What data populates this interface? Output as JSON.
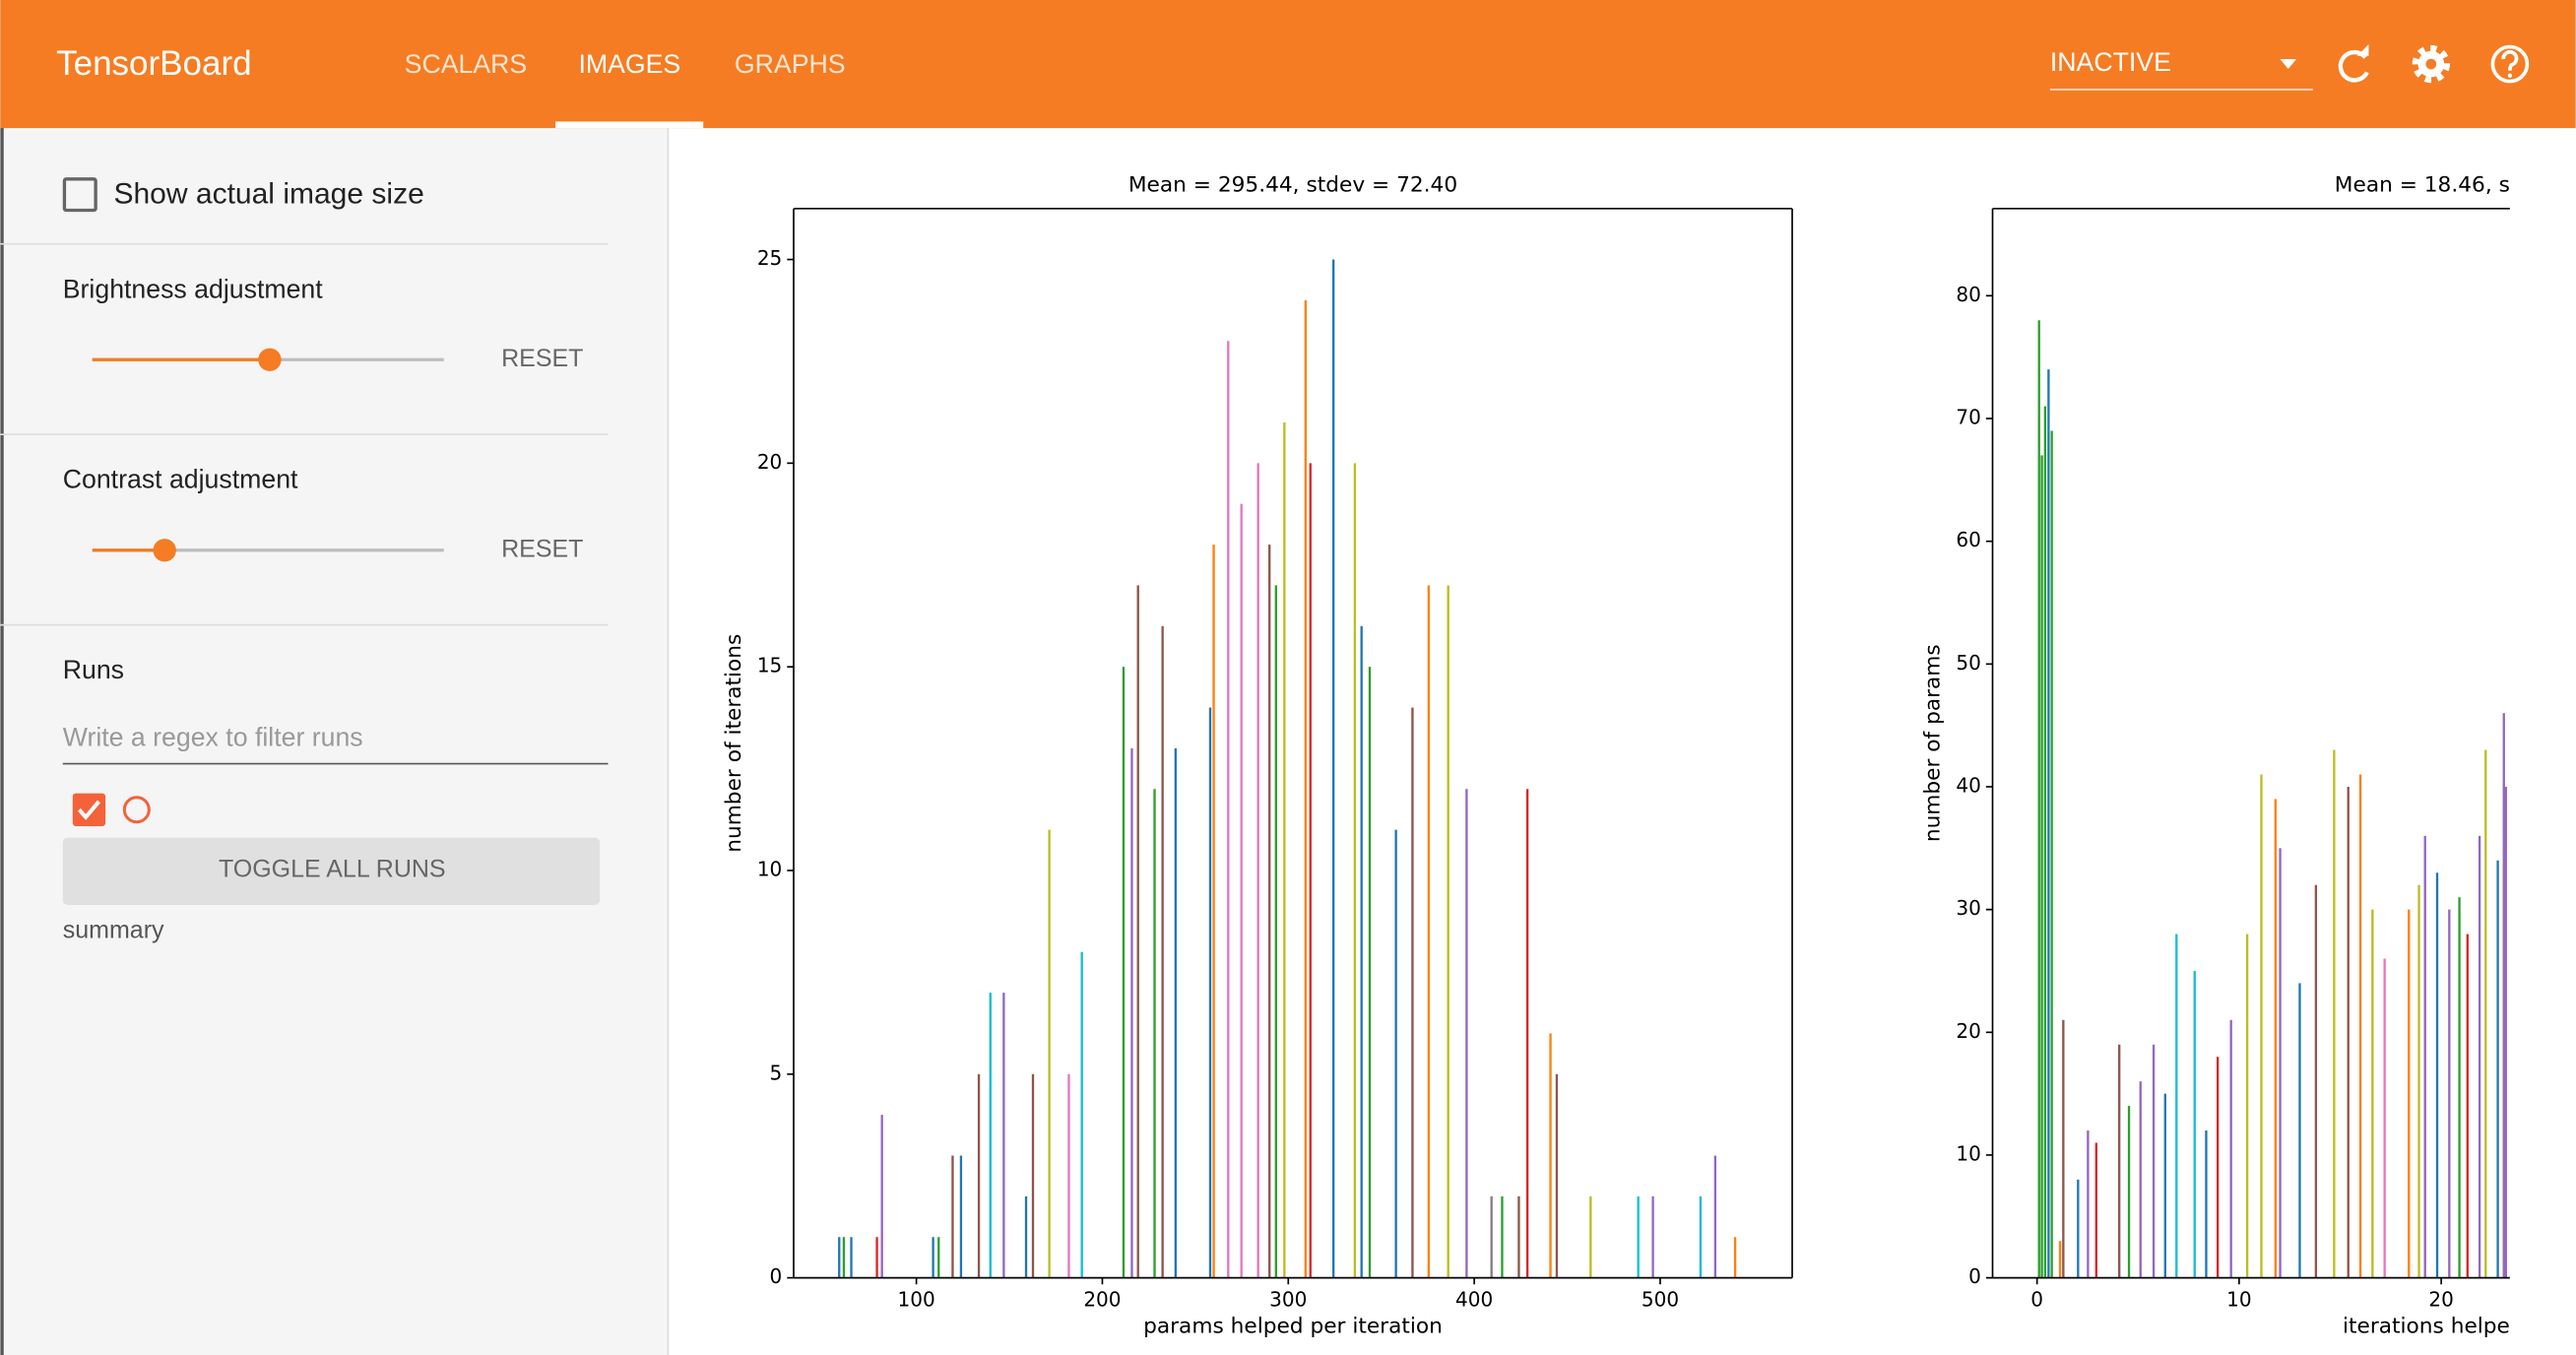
{
  "header": {
    "title": "TensorBoard",
    "tabs": [
      "SCALARS",
      "IMAGES",
      "GRAPHS"
    ],
    "status": "INACTIVE"
  },
  "sidebar": {
    "show_size": "Show actual image size",
    "brightness": "Brightness adjustment",
    "brightness_reset": "RESET",
    "contrast": "Contrast adjustment",
    "contrast_reset": "RESET",
    "runs_title": "Runs",
    "filter_placeholder": "Write a regex to filter runs",
    "toggle_all": "TOGGLE ALL RUNS",
    "run_name": "summary"
  },
  "chart_data": [
    {
      "type": "bar",
      "title": "Mean = 295.44, stdev = 72.40",
      "xlabel": "params helped per iteration",
      "ylabel": "number of iterations",
      "xlim": [
        34,
        571
      ],
      "ylim": [
        0,
        26.25
      ],
      "xticks": [
        100,
        200,
        300,
        400,
        500
      ],
      "yticks": [
        0,
        5,
        10,
        15,
        20,
        25
      ],
      "x": [
        58.5,
        61,
        65,
        78.8,
        81.5,
        109,
        112,
        119.5,
        124,
        133.6,
        139.8,
        147,
        159,
        162.7,
        171.5,
        182,
        189,
        211.4,
        215.9,
        219.2,
        228.1,
        232.4,
        239.4,
        258,
        259.9,
        267.7,
        274.8,
        283.8,
        289.9,
        293.4,
        297.9,
        309.3,
        311.9,
        324.3,
        335.8,
        339.4,
        343.8,
        357.9,
        366.8,
        375.5,
        386,
        395.9,
        409.3,
        415,
        424,
        428.6,
        441,
        444.4,
        462.6,
        488.2,
        496.1,
        521.7,
        529.6,
        540.3
      ],
      "values": [
        1,
        1,
        1,
        1,
        4,
        1,
        1,
        3,
        3,
        5,
        7,
        7,
        2,
        5,
        11,
        5,
        8,
        15,
        13,
        17,
        12,
        16,
        13,
        14,
        18,
        23,
        19,
        20,
        18,
        17,
        21,
        24,
        20,
        25,
        20,
        16,
        15,
        11,
        14,
        17,
        17,
        12,
        2,
        2,
        2,
        12,
        6,
        5,
        2,
        2,
        2,
        2,
        3,
        1
      ],
      "colors": [
        "#1f77b4",
        "#2ca02c",
        "#1f77b4",
        "#d62728",
        "#9467bd",
        "#1f77b4",
        "#2ca02c",
        "#8c564b",
        "#1f77b4",
        "#8c564b",
        "#17becf",
        "#9467bd",
        "#1f77b4",
        "#8c564b",
        "#bcbd22",
        "#e377c2",
        "#17becf",
        "#2ca02c",
        "#9467bd",
        "#8c564b",
        "#2ca02c",
        "#8c564b",
        "#1f77b4",
        "#1f77b4",
        "#ff7f0e",
        "#e377c2",
        "#e377c2",
        "#e377c2",
        "#8c564b",
        "#2ca02c",
        "#bcbd22",
        "#ff7f0e",
        "#d62728",
        "#1f77b4",
        "#bcbd22",
        "#1f77b4",
        "#2ca02c",
        "#1f77b4",
        "#8c564b",
        "#ff7f0e",
        "#bcbd22",
        "#9467bd",
        "#7f7f7f",
        "#2ca02c",
        "#8c564b",
        "#d62728",
        "#ff7f0e",
        "#8c564b",
        "#bcbd22",
        "#17becf",
        "#9467bd",
        "#17becf",
        "#9467bd",
        "#ff7f0e"
      ]
    },
    {
      "type": "bar",
      "title": "Mean = 18.46, s",
      "xlabel": "iterations helpe",
      "ylabel": "number of params",
      "xlim": [
        -2.2,
        23.4
      ],
      "ylim": [
        0,
        87.1
      ],
      "xticks": [
        0,
        10,
        20
      ],
      "yticks": [
        0,
        10,
        20,
        30,
        40,
        50,
        60,
        70,
        80
      ],
      "x": [
        0.1,
        0.24,
        0.4,
        0.57,
        0.73,
        1.14,
        1.3,
        2.03,
        2.52,
        2.93,
        4.07,
        4.55,
        5.12,
        5.77,
        6.34,
        6.9,
        7.8,
        8.37,
        8.94,
        9.6,
        10.4,
        11.1,
        11.8,
        12.03,
        13,
        13.8,
        14.7,
        15.4,
        16,
        16.6,
        17.2,
        18.4,
        18.9,
        19.2,
        19.8,
        20.4,
        20.9,
        21.3,
        21.9,
        22.2,
        22.8,
        23.1,
        23.2
      ],
      "values": [
        78,
        67,
        71,
        74,
        69,
        3,
        21,
        8,
        12,
        11,
        19,
        14,
        16,
        19,
        15,
        28,
        25,
        12,
        18,
        21,
        28,
        41,
        39,
        35,
        24,
        32,
        43,
        40,
        41,
        30,
        26,
        30,
        32,
        36,
        33,
        30,
        31,
        28,
        36,
        43,
        34,
        46,
        40
      ],
      "colors": [
        "#2ca02c",
        "#2ca02c",
        "#2ca02c",
        "#1f77b4",
        "#2ca02c",
        "#ff7f0e",
        "#8c564b",
        "#1f77b4",
        "#9467bd",
        "#d62728",
        "#8c564b",
        "#2ca02c",
        "#9467bd",
        "#9467bd",
        "#1f77b4",
        "#17becf",
        "#17becf",
        "#1f77b4",
        "#d62728",
        "#9467bd",
        "#bcbd22",
        "#bcbd22",
        "#ff7f0e",
        "#9467bd",
        "#1f77b4",
        "#8c564b",
        "#bcbd22",
        "#8c564b",
        "#ff7f0e",
        "#bcbd22",
        "#e377c2",
        "#ff7f0e",
        "#bcbd22",
        "#9467bd",
        "#1f77b4",
        "#9467bd",
        "#2ca02c",
        "#d62728",
        "#9467bd",
        "#bcbd22",
        "#1f77b4",
        "#9467bd",
        "#9467bd"
      ]
    }
  ]
}
